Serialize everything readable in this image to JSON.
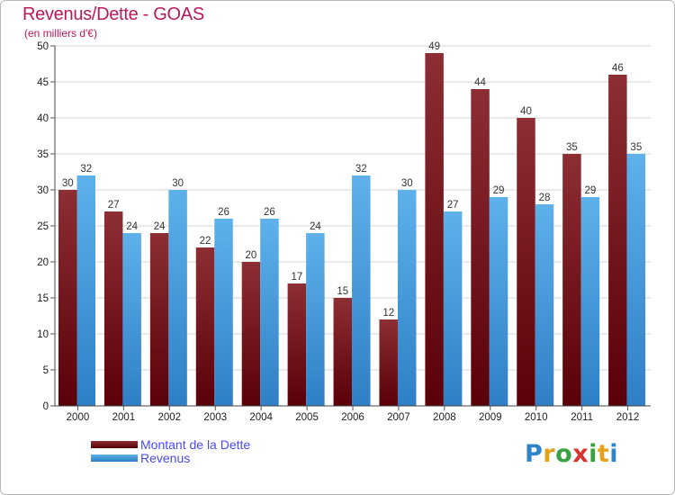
{
  "page": {
    "title": "Revenus/Dette - GOAS",
    "subtitle": "(en milliers d'€)",
    "logo_text": "Proxiti"
  },
  "chart_data": {
    "type": "bar",
    "title": "Revenus/Dette - GOAS",
    "subtitle": "(en milliers d'€)",
    "xlabel": "",
    "ylabel": "",
    "categories": [
      "2000",
      "2001",
      "2002",
      "2003",
      "2004",
      "2005",
      "2006",
      "2007",
      "2008",
      "2009",
      "2010",
      "2011",
      "2012"
    ],
    "series": [
      {
        "name": "Montant de la Dette",
        "values": [
          30,
          27,
          24,
          22,
          20,
          17,
          15,
          12,
          49,
          44,
          40,
          35,
          46
        ]
      },
      {
        "name": "Revenus",
        "values": [
          32,
          24,
          30,
          26,
          26,
          24,
          32,
          30,
          27,
          29,
          28,
          29,
          35
        ]
      }
    ],
    "ylim": [
      0,
      50
    ],
    "yticks": [
      "0",
      "5",
      "10",
      "15",
      "20",
      "25",
      "30",
      "35",
      "40",
      "45",
      "50"
    ],
    "grid": true,
    "legend_placement": "bottom-left",
    "colors": {
      "dette_top": "#8c2e34",
      "dette_bottom": "#5a0008",
      "revenus_top": "#5eb1ea",
      "revenus_bottom": "#2f7fc6",
      "title": "#b8195c",
      "legend_text": "#4a4af2"
    }
  }
}
